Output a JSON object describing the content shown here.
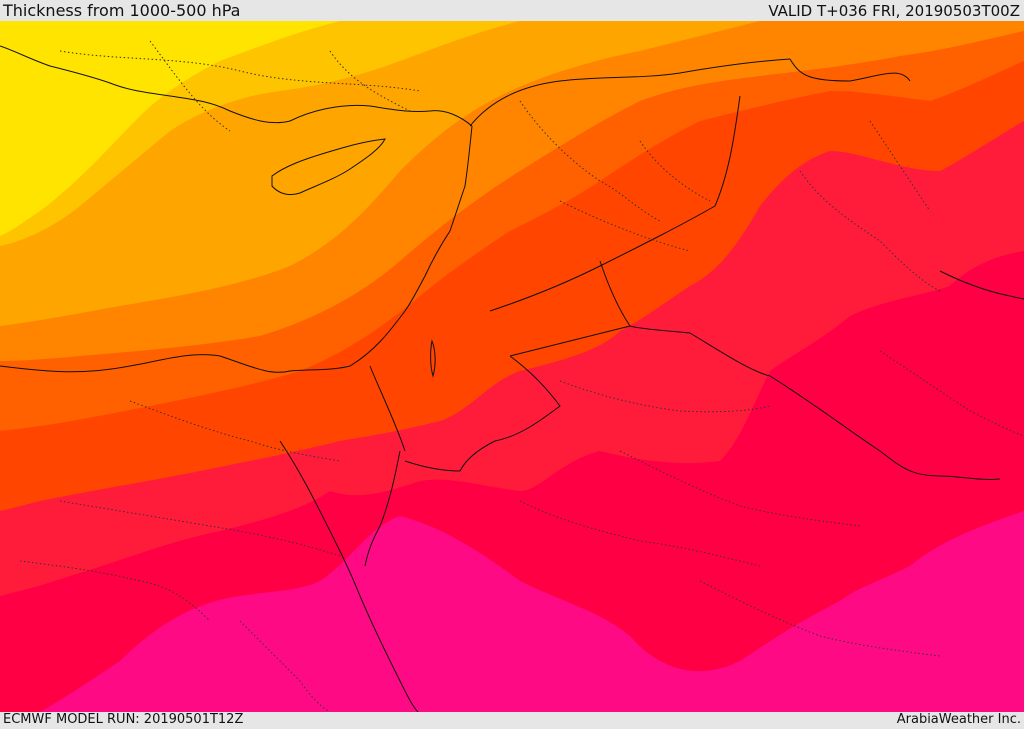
{
  "header": {
    "title": "Thickness from 1000-500 hPa",
    "valid": "VALID T+036 FRI, 20190503T00Z"
  },
  "footer": {
    "model_run": "ECMWF MODEL RUN: 20190501T12Z",
    "credit": "ArabiaWeather Inc."
  },
  "colors": {
    "yellow": "#ffe400",
    "light_orange": "#ffc400",
    "orange": "#ffa500",
    "dark_orange": "#ff8400",
    "red_orange": "#ff6000",
    "orange_red": "#ff4500",
    "red": "#ff1c3a",
    "crimson": "#ff0045",
    "magenta": "#ff0a85",
    "border_line": "#111111"
  }
}
